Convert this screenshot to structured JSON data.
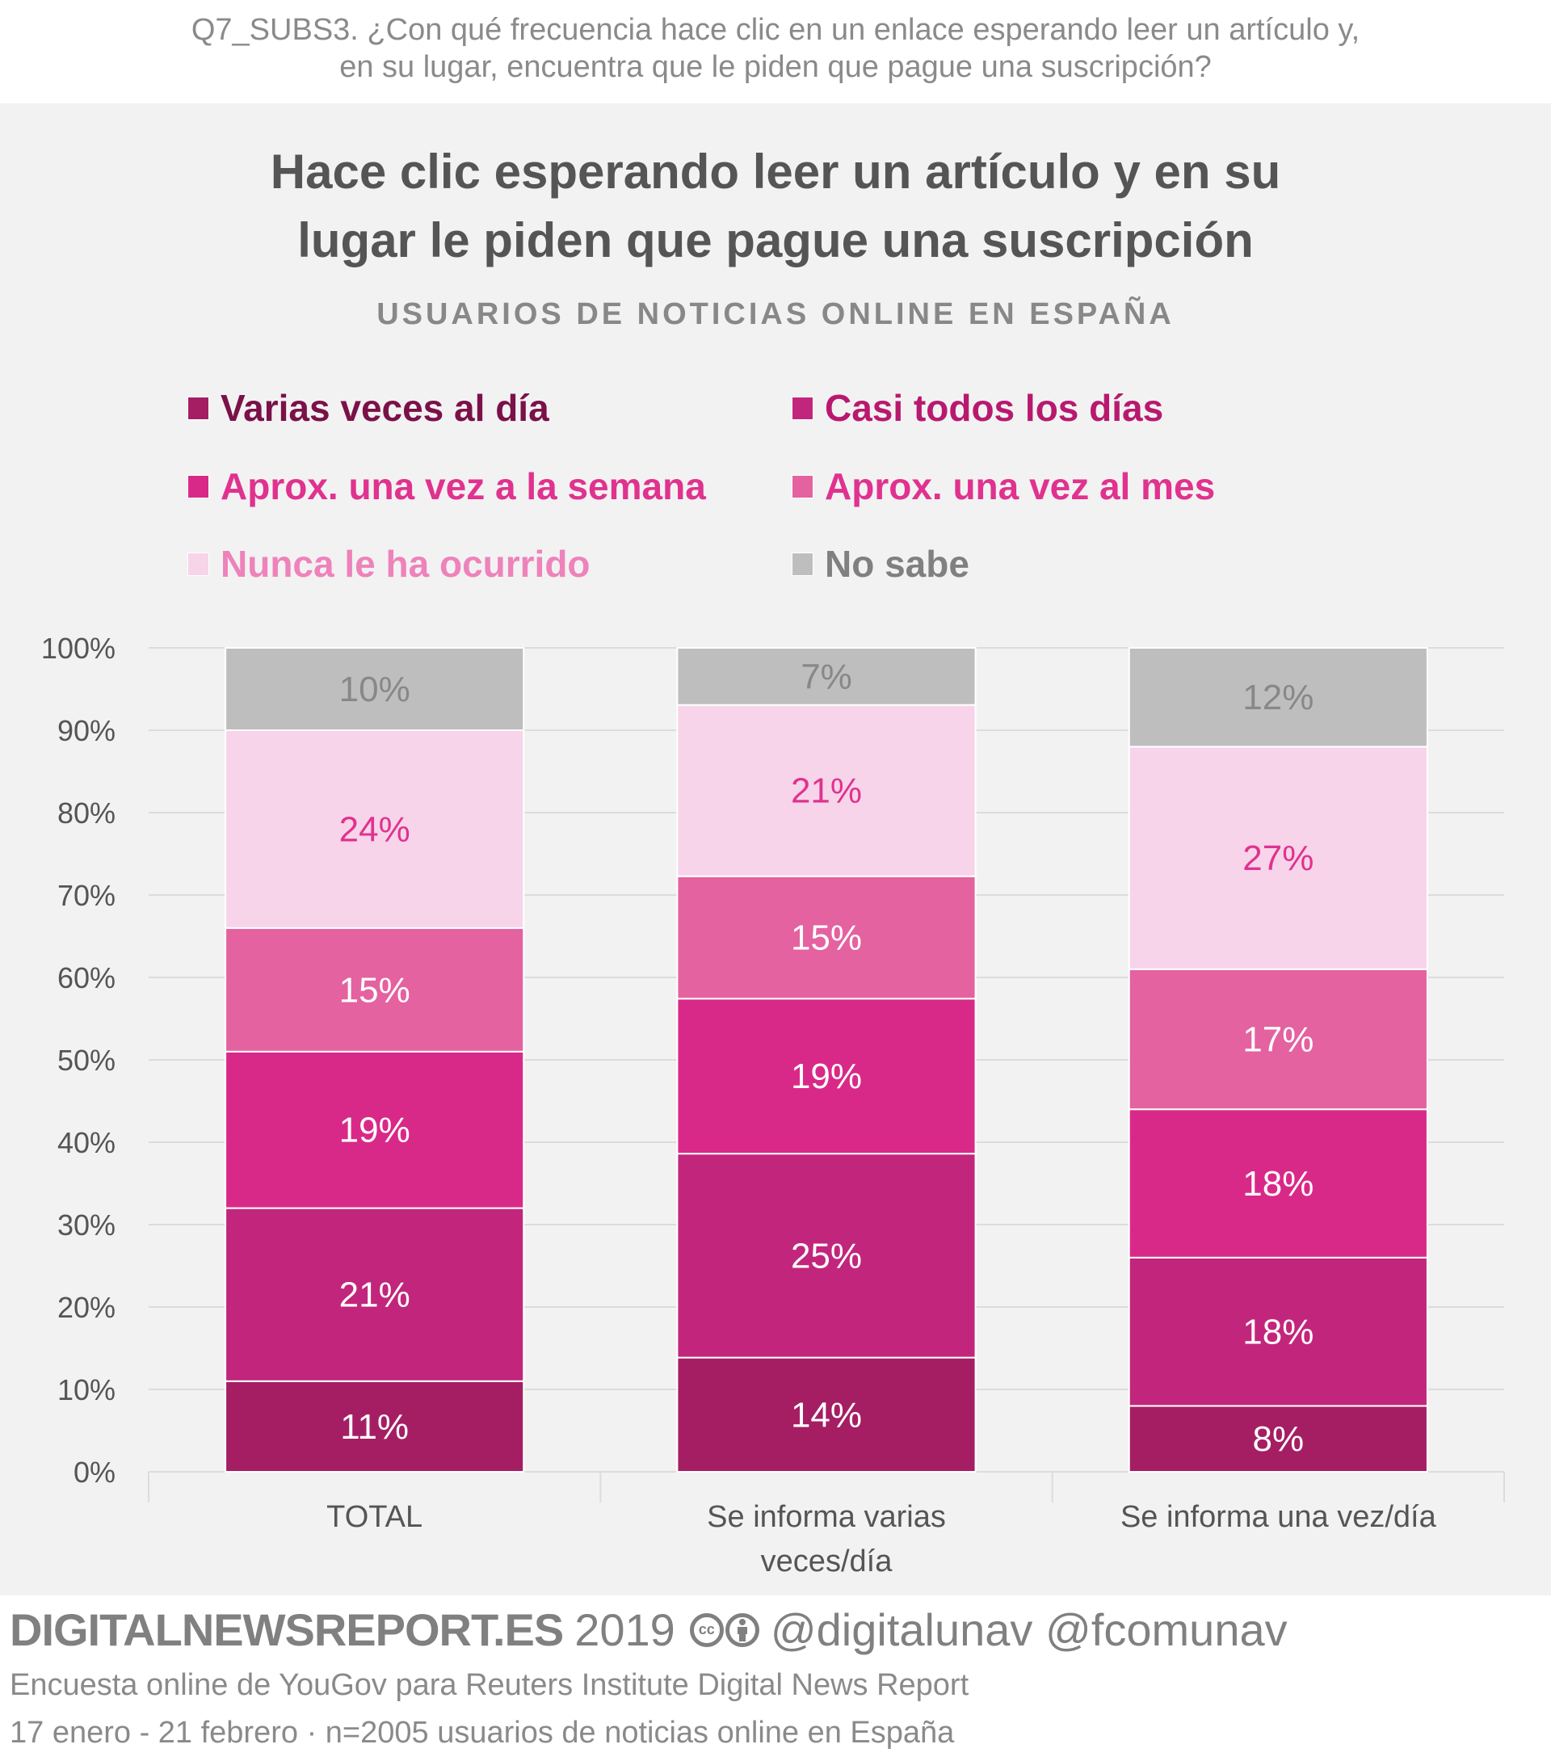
{
  "question": {
    "line1": "Q7_SUBS3. ¿Con qué frecuencia hace clic en un enlace esperando leer un artículo y,",
    "line2": "en su lugar, encuentra que le piden que pague una suscripción?"
  },
  "colors": {
    "varias_veces": "#a51e64",
    "casi_todos": "#c2267c",
    "semana": "#d92988",
    "mes": "#e462a0",
    "nunca": "#f7d4e9",
    "no_sabe": "#bebebe",
    "legend_text_varias": "#7a1148",
    "legend_text_casi": "#b8196f",
    "legend_text_semana": "#e0328f",
    "legend_text_mes": "#e0328f",
    "legend_text_nunca": "#ee82bb",
    "legend_text_nosabe": "#808080",
    "label_white": "#ffffff",
    "label_pink": "#e0328f",
    "label_gray": "#888888"
  },
  "legend": [
    {
      "label": "Varias veces al día"
    },
    {
      "label": "Casi todos los días"
    },
    {
      "label": "Aprox. una vez a la semana"
    },
    {
      "label": "Aprox. una vez al mes"
    },
    {
      "label": "Nunca le ha ocurrido"
    },
    {
      "label": "No sabe"
    }
  ],
  "chart_data": {
    "type": "bar",
    "stacked": true,
    "title": "Hace clic esperando leer un artículo y en su lugar le piden que pague una suscripción",
    "title_lines": [
      "Hace clic esperando leer un artículo y en su",
      "lugar le piden que pague una suscripción"
    ],
    "subtitle": "USUARIOS DE NOTICIAS ONLINE EN ESPAÑA",
    "categories": [
      "TOTAL",
      "Se informa varias veces/día",
      "Se informa una vez/día"
    ],
    "category_label_lines": [
      [
        "TOTAL"
      ],
      [
        "Se informa varias",
        "veces/día"
      ],
      [
        "Se informa una vez/día"
      ]
    ],
    "series": [
      {
        "name": "Varias veces al día",
        "values": [
          11,
          14,
          8
        ]
      },
      {
        "name": "Casi todos los días",
        "values": [
          21,
          25,
          18
        ]
      },
      {
        "name": "Aprox. una vez a la semana",
        "values": [
          19,
          19,
          18
        ]
      },
      {
        "name": "Aprox. una vez al mes",
        "values": [
          15,
          15,
          17
        ]
      },
      {
        "name": "Nunca le ha ocurrido",
        "values": [
          24,
          21,
          27
        ]
      },
      {
        "name": "No sabe",
        "values": [
          10,
          7,
          12
        ]
      }
    ],
    "value_suffix": "%",
    "ylim": [
      0,
      100
    ],
    "yticks": [
      "0%",
      "10%",
      "20%",
      "30%",
      "40%",
      "50%",
      "60%",
      "70%",
      "80%",
      "90%",
      "100%"
    ],
    "xlabel": "",
    "ylabel": "",
    "grid": true,
    "legend_position": "top"
  },
  "footer": {
    "brand": "DIGITALNEWSREPORT.ES",
    "year": "2019",
    "cc_label": "cc",
    "handles": "@digitalunav @fcomunav",
    "line2": "Encuesta online de YouGov para Reuters Institute Digital News Report",
    "line3": "17 enero - 21 febrero · n=2005 usuarios de noticias online en España"
  }
}
